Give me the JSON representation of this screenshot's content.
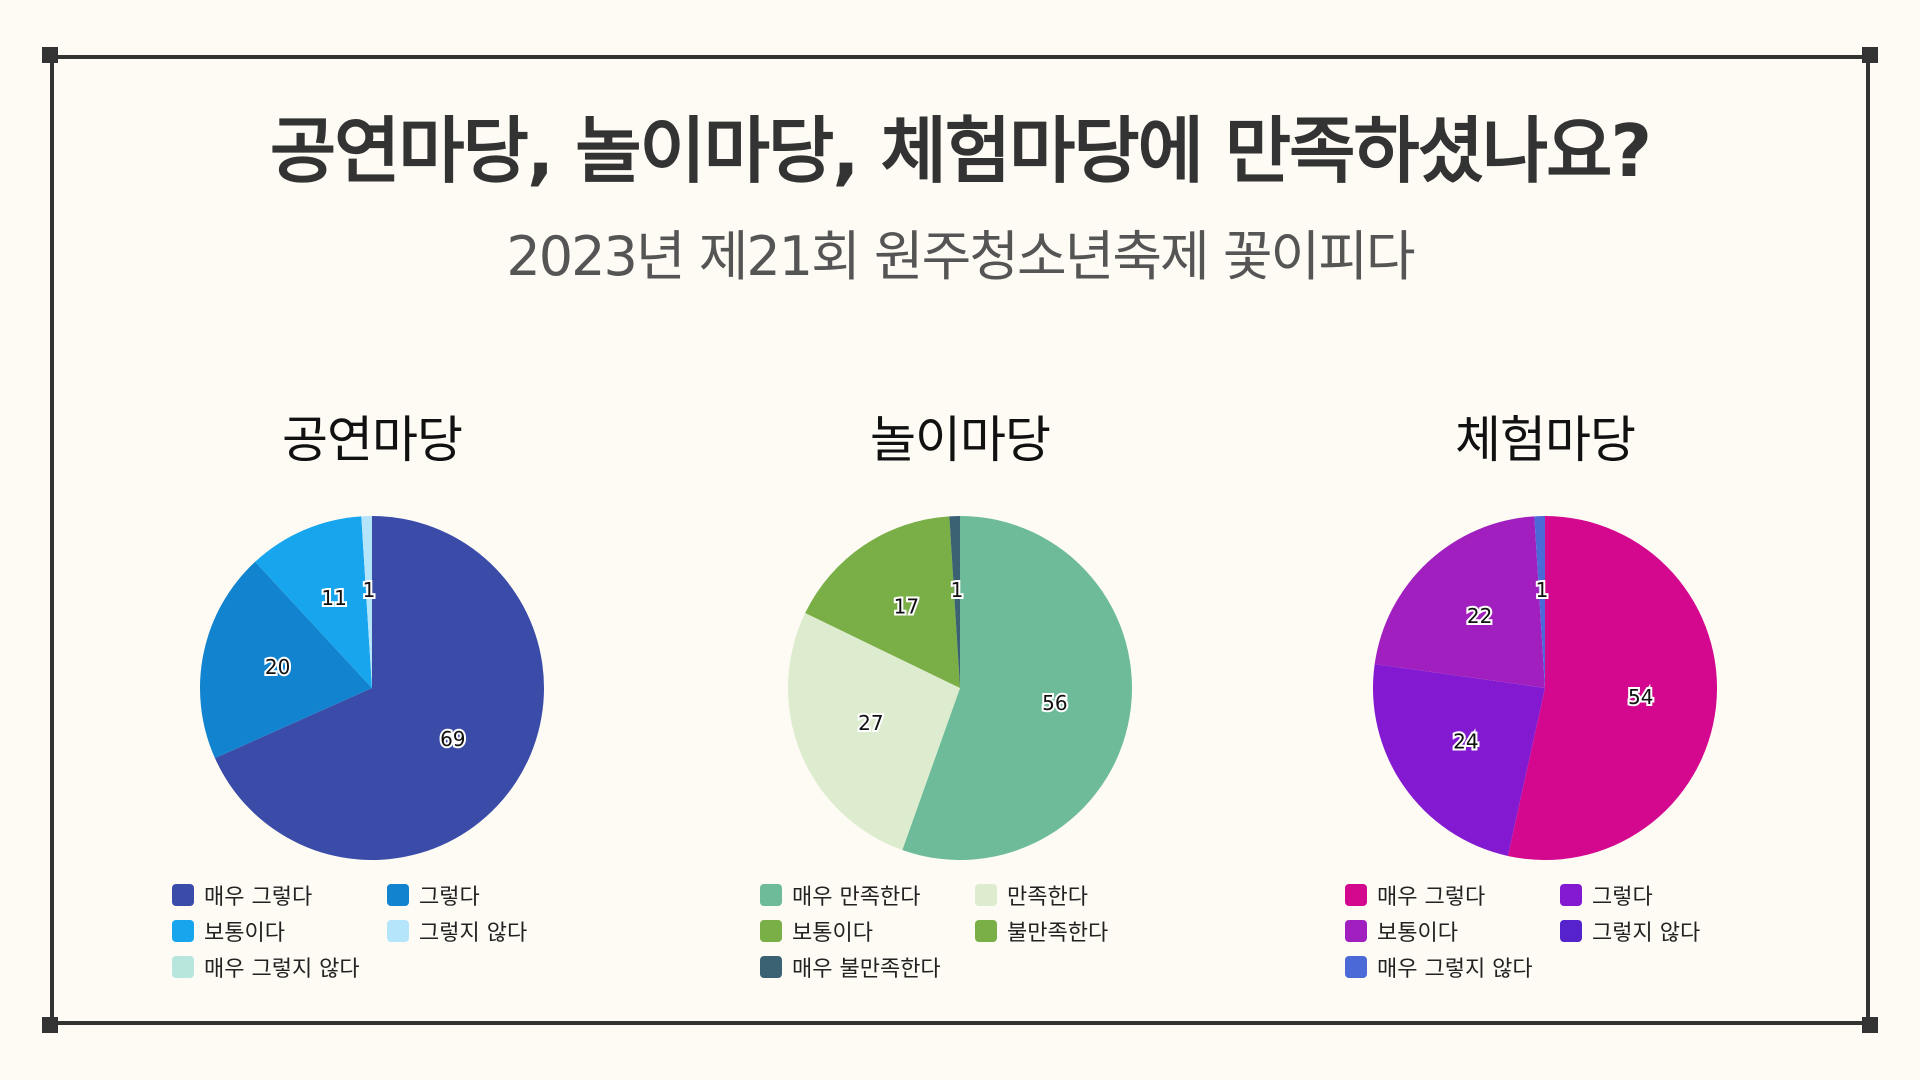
{
  "title": "공연마당, 놀이마당, 체험마당에 만족하셨나요?",
  "subtitle": "2023년 제21회 원주청소년축제 꽃이피다",
  "chart_data": [
    {
      "type": "pie",
      "title": "공연마당",
      "categories": [
        "매우 그렇다",
        "그렇다",
        "보통이다",
        "그렇지 않다",
        "매우 그렇지 않다"
      ],
      "values": [
        69,
        20,
        11,
        1,
        0
      ],
      "colors": [
        "#3a4ba8",
        "#1283cf",
        "#17a6ee",
        "#b5e5fb",
        "#b7e6dd"
      ]
    },
    {
      "type": "pie",
      "title": "놀이마당",
      "categories": [
        "매우 만족한다",
        "만족한다",
        "보통이다",
        "불만족한다",
        "매우 불만족한다"
      ],
      "values": [
        56,
        27,
        17,
        0,
        1
      ],
      "colors": [
        "#6dbb98",
        "#ddeccf",
        "#7aae46",
        "#7aae46",
        "#3a6272"
      ]
    },
    {
      "type": "pie",
      "title": "체험마당",
      "categories": [
        "매우 그렇다",
        "그렇다",
        "보통이다",
        "그렇지 않다",
        "매우 그렇지 않다"
      ],
      "values": [
        54,
        24,
        22,
        0,
        1
      ],
      "colors": [
        "#d4078f",
        "#8319d0",
        "#a21fbf",
        "#5522cc",
        "#4b6ad8"
      ]
    }
  ]
}
